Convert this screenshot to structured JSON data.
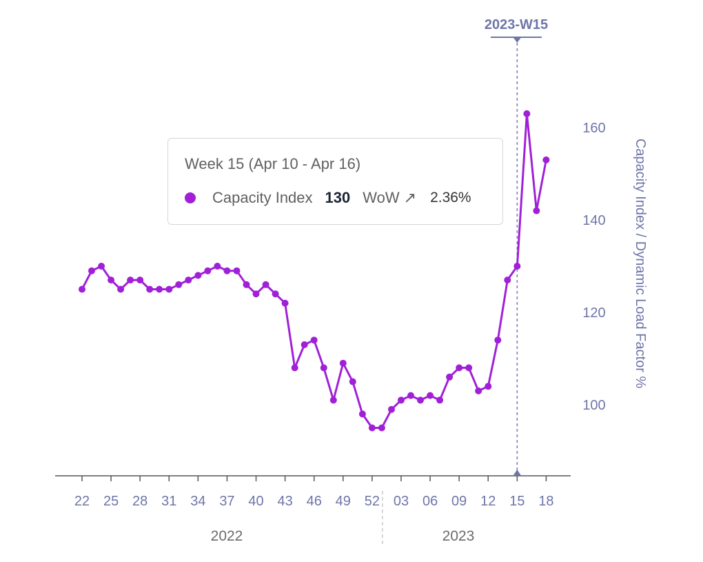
{
  "chart_data": {
    "type": "line",
    "series": [
      {
        "name": "Capacity Index",
        "color": "#a020d8",
        "values": [
          125,
          129,
          130,
          127,
          125,
          127,
          127,
          125,
          125,
          125,
          126,
          127,
          128,
          129,
          130,
          129,
          129,
          126,
          124,
          126,
          124,
          122,
          108,
          113,
          114,
          108,
          101,
          109,
          105,
          98,
          95,
          95,
          99,
          101,
          102,
          101,
          102,
          101,
          106,
          108,
          108,
          103,
          104,
          114,
          127,
          130,
          163,
          142,
          153
        ]
      }
    ],
    "x_start_week": {
      "year": 2022,
      "week": 22
    },
    "x_tick_labels": [
      "22",
      "25",
      "28",
      "31",
      "34",
      "37",
      "40",
      "43",
      "46",
      "49",
      "52",
      "03",
      "06",
      "09",
      "12",
      "15",
      "18"
    ],
    "years": [
      "2022",
      "2023"
    ],
    "y_ticks": [
      "100",
      "120",
      "140",
      "160"
    ],
    "ylabel": "Capacity Index / Dynamic Load Factor %",
    "ylim": [
      85,
      165
    ],
    "cursor": {
      "label": "2023-W15",
      "color": "#6e75a8"
    },
    "tooltip": {
      "title": "Week 15 (Apr 10 - Apr 16)",
      "series_name": "Capacity Index",
      "value": "130",
      "wow_label": "WoW",
      "wow_arrow": "↗",
      "wow_pct": "2.36%"
    }
  }
}
